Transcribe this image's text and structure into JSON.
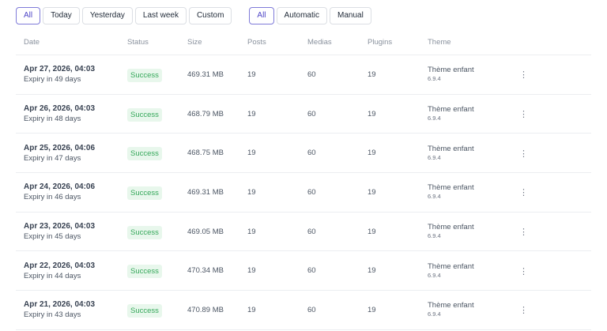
{
  "filters": {
    "period": [
      "All",
      "Today",
      "Yesterday",
      "Last week",
      "Custom"
    ],
    "type": [
      "All",
      "Automatic",
      "Manual"
    ],
    "active_period": "All",
    "active_type": "All"
  },
  "table": {
    "headers": {
      "date": "Date",
      "status": "Status",
      "size": "Size",
      "posts": "Posts",
      "medias": "Medias",
      "plugins": "Plugins",
      "theme": "Theme"
    },
    "rows": [
      {
        "date": "Apr 27, 2026, 04:03",
        "expiry": "Expiry in 49 days",
        "status": "Success",
        "size": "469.31 MB",
        "posts": "19",
        "medias": "60",
        "plugins": "19",
        "theme": "Thème enfant",
        "theme_version": "6.9.4"
      },
      {
        "date": "Apr 26, 2026, 04:03",
        "expiry": "Expiry in 48 days",
        "status": "Success",
        "size": "468.79 MB",
        "posts": "19",
        "medias": "60",
        "plugins": "19",
        "theme": "Thème enfant",
        "theme_version": "6.9.4"
      },
      {
        "date": "Apr 25, 2026, 04:06",
        "expiry": "Expiry in 47 days",
        "status": "Success",
        "size": "468.75 MB",
        "posts": "19",
        "medias": "60",
        "plugins": "19",
        "theme": "Thème enfant",
        "theme_version": "6.9.4"
      },
      {
        "date": "Apr 24, 2026, 04:06",
        "expiry": "Expiry in 46 days",
        "status": "Success",
        "size": "469.31 MB",
        "posts": "19",
        "medias": "60",
        "plugins": "19",
        "theme": "Thème enfant",
        "theme_version": "6.9.4"
      },
      {
        "date": "Apr 23, 2026, 04:03",
        "expiry": "Expiry in 45 days",
        "status": "Success",
        "size": "469.05 MB",
        "posts": "19",
        "medias": "60",
        "plugins": "19",
        "theme": "Thème enfant",
        "theme_version": "6.9.4"
      },
      {
        "date": "Apr 22, 2026, 04:03",
        "expiry": "Expiry in 44 days",
        "status": "Success",
        "size": "470.34 MB",
        "posts": "19",
        "medias": "60",
        "plugins": "19",
        "theme": "Thème enfant",
        "theme_version": "6.9.4"
      },
      {
        "date": "Apr 21, 2026, 04:03",
        "expiry": "Expiry in 43 days",
        "status": "Success",
        "size": "470.89 MB",
        "posts": "19",
        "medias": "60",
        "plugins": "19",
        "theme": "Thème enfant",
        "theme_version": "6.9.4"
      }
    ]
  },
  "icons": {
    "row_menu": "more-vertical-icon"
  },
  "colors": {
    "active_filter": "#4f46c7",
    "success_bg": "#e8f7ec",
    "success_text": "#35a85a"
  }
}
